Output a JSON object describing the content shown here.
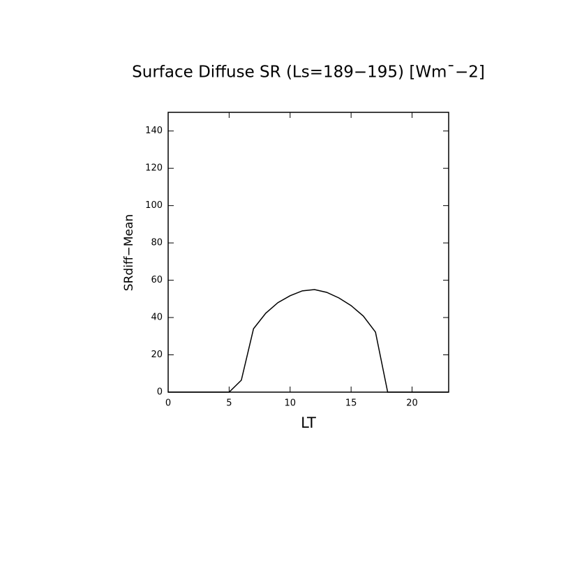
{
  "chart_data": {
    "type": "line",
    "title": "Surface Diffuse SR (Ls=189−195) [Wm¯−2]",
    "xlabel": "LT",
    "ylabel": "SRdiff−Mean",
    "x": [
      0,
      1,
      2,
      3,
      4,
      5,
      6,
      7,
      8,
      9,
      10,
      11,
      12,
      13,
      14,
      15,
      16,
      17,
      18,
      19,
      20,
      21,
      22,
      23
    ],
    "series": [
      {
        "color": "#000000",
        "values": [
          0,
          0,
          0,
          0,
          0,
          0,
          6.4,
          34,
          42.3,
          48,
          51.7,
          54.3,
          55,
          53.5,
          50.5,
          46.4,
          40.8,
          32.2,
          0,
          0,
          0,
          0,
          0,
          0
        ]
      }
    ],
    "xlim": [
      0,
      23
    ],
    "xticks": [
      0,
      5,
      10,
      15,
      20
    ],
    "ylim": [
      0,
      150
    ],
    "yticks": [
      0,
      20,
      40,
      60,
      80,
      100,
      120,
      140
    ]
  }
}
